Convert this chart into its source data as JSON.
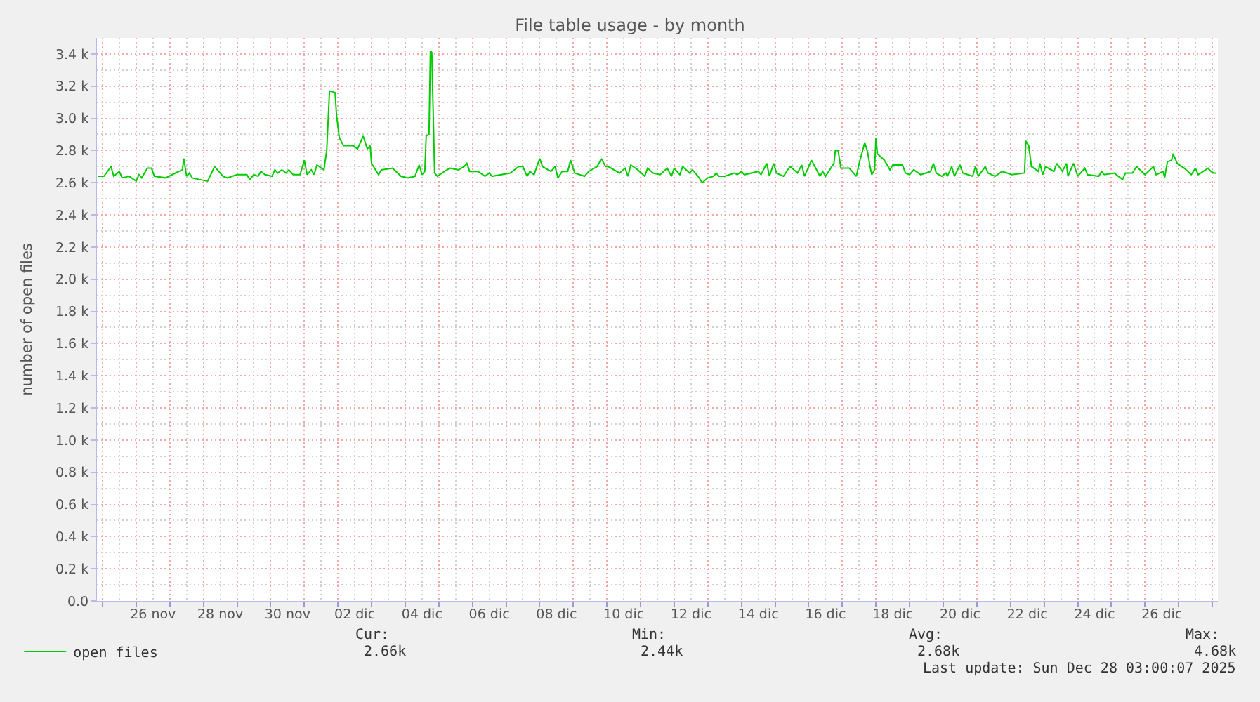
{
  "chart_data": {
    "type": "line",
    "title": "File table usage - by month",
    "ylabel": "number of open files",
    "x": [
      "2025-11-24T21:00",
      "2025-11-25T01:00",
      "2025-11-25T06:00",
      "2025-11-25T08:00",
      "2025-11-25T12:00",
      "2025-11-25T14:00",
      "2025-11-25T19:00",
      "2025-11-26T00:00",
      "2025-11-26T02:00",
      "2025-11-26T04:00",
      "2025-11-26T08:00",
      "2025-11-26T11:00",
      "2025-11-26T13:00",
      "2025-11-26T21:00",
      "2025-11-27T04:00",
      "2025-11-27T09:00",
      "2025-11-27T10:00",
      "2025-11-27T12:00",
      "2025-11-27T14:00",
      "2025-11-27T16:00",
      "2025-11-27T21:00",
      "2025-11-28T03:00",
      "2025-11-28T08:00",
      "2025-11-28T14:00",
      "2025-11-28T17:00",
      "2025-11-29T00:00",
      "2025-11-29T07:00",
      "2025-11-29T09:00",
      "2025-11-29T12:00",
      "2025-11-29T15:00",
      "2025-11-29T17:00",
      "2025-11-29T20:00",
      "2025-11-30T01:00",
      "2025-11-30T03:00",
      "2025-11-30T05:00",
      "2025-11-30T08:00",
      "2025-11-30T11:00",
      "2025-11-30T13:00",
      "2025-11-30T16:00",
      "2025-11-30T21:00",
      "2025-12-01T00:00",
      "2025-12-01T02:00",
      "2025-12-01T05:00",
      "2025-12-01T07:00",
      "2025-12-01T09:00",
      "2025-12-01T14:00",
      "2025-12-01T16:00",
      "2025-12-01T18:00",
      "2025-12-01T22:00",
      "2025-12-01T23:00",
      "2025-12-02T01:00",
      "2025-12-02T04:00",
      "2025-12-02T11:00",
      "2025-12-02T14:00",
      "2025-12-02T18:00",
      "2025-12-02T21:00",
      "2025-12-02T23:00",
      "2025-12-03T00:00",
      "2025-12-03T05:00",
      "2025-12-03T07:00",
      "2025-12-03T15:00",
      "2025-12-03T21:00",
      "2025-12-04T02:00",
      "2025-12-04T07:00",
      "2025-12-04T10:00",
      "2025-12-04T12:00",
      "2025-12-04T14:00",
      "2025-12-04T15:00",
      "2025-12-04T17:00",
      "2025-12-04T18:00",
      "2025-12-04T19:00",
      "2025-12-04T21:00",
      "2025-12-04T23:00",
      "2025-12-05T04:00",
      "2025-12-05T08:00",
      "2025-12-05T14:00",
      "2025-12-05T18:00",
      "2025-12-05T20:00",
      "2025-12-05T22:00",
      "2025-12-06T04:00",
      "2025-12-06T09:00",
      "2025-12-06T12:00",
      "2025-12-06T14:00",
      "2025-12-07T03:00",
      "2025-12-07T09:00",
      "2025-12-07T12:00",
      "2025-12-07T15:00",
      "2025-12-07T17:00",
      "2025-12-07T20:00",
      "2025-12-08T00:00",
      "2025-12-08T02:00",
      "2025-12-08T08:00",
      "2025-12-08T11:00",
      "2025-12-08T13:00",
      "2025-12-08T16:00",
      "2025-12-08T20:00",
      "2025-12-08T22:00",
      "2025-12-09T01:00",
      "2025-12-09T08:00",
      "2025-12-09T11:00",
      "2025-12-09T17:00",
      "2025-12-09T20:00",
      "2025-12-09T23:00",
      "2025-12-10T01:00",
      "2025-12-10T07:00",
      "2025-12-10T09:00",
      "2025-12-10T13:00",
      "2025-12-10T15:00",
      "2025-12-10T17:00",
      "2025-12-10T22:00",
      "2025-12-11T03:00",
      "2025-12-11T05:00",
      "2025-12-11T09:00",
      "2025-12-11T14:00",
      "2025-12-11T19:00",
      "2025-12-11T22:00",
      "2025-12-12T00:00",
      "2025-12-12T04:00",
      "2025-12-12T06:00",
      "2025-12-12T11:00",
      "2025-12-12T13:00",
      "2025-12-12T17:00",
      "2025-12-12T20:00",
      "2025-12-13T00:00",
      "2025-12-13T04:00",
      "2025-12-13T06:00",
      "2025-12-13T08:00",
      "2025-12-13T12:00",
      "2025-12-13T19:00",
      "2025-12-13T21:00",
      "2025-12-14T00:00",
      "2025-12-14T02:00",
      "2025-12-14T12:00",
      "2025-12-14T14:00",
      "2025-12-14T18:00",
      "2025-12-14T20:00",
      "2025-12-14T23:00",
      "2025-12-15T01:00",
      "2025-12-15T06:00",
      "2025-12-15T09:00",
      "2025-12-15T11:00",
      "2025-12-15T16:00",
      "2025-12-15T19:00",
      "2025-12-15T21:00",
      "2025-12-16T02:00",
      "2025-12-16T08:00",
      "2025-12-16T10:00",
      "2025-12-16T12:00",
      "2025-12-16T18:00",
      "2025-12-16T19:00",
      "2025-12-16T21:00",
      "2025-12-16T23:00",
      "2025-12-17T05:00",
      "2025-12-17T10:00",
      "2025-12-17T12:00",
      "2025-12-17T16:00",
      "2025-12-17T18:00",
      "2025-12-17T20:00",
      "2025-12-17T21:00",
      "2025-12-17T23:00",
      "2025-12-18T00:00",
      "2025-12-18T01:00",
      "2025-12-18T06:00",
      "2025-12-18T10:00",
      "2025-12-18T12:00",
      "2025-12-18T19:00",
      "2025-12-18T21:00",
      "2025-12-19T00:00",
      "2025-12-19T03:00",
      "2025-12-19T08:00",
      "2025-12-19T15:00",
      "2025-12-19T17:00",
      "2025-12-19T19:00",
      "2025-12-19T23:00",
      "2025-12-20T02:00",
      "2025-12-20T03:00",
      "2025-12-20T06:00",
      "2025-12-20T08:00",
      "2025-12-20T12:00",
      "2025-12-20T14:00",
      "2025-12-20T21:00",
      "2025-12-20T23:00",
      "2025-12-21T01:00",
      "2025-12-21T06:00",
      "2025-12-21T08:00",
      "2025-12-21T13:00",
      "2025-12-21T18:00",
      "2025-12-22T01:00",
      "2025-12-22T10:00",
      "2025-12-22T11:00",
      "2025-12-22T13:00",
      "2025-12-22T15:00",
      "2025-12-22T20:00",
      "2025-12-22T21:00",
      "2025-12-22T23:00",
      "2025-12-23T01:00",
      "2025-12-23T07:00",
      "2025-12-23T09:00",
      "2025-12-23T13:00",
      "2025-12-23T16:00",
      "2025-12-23T17:00",
      "2025-12-23T21:00",
      "2025-12-24T00:00",
      "2025-12-24T05:00",
      "2025-12-24T07:00",
      "2025-12-24T15:00",
      "2025-12-24T17:00",
      "2025-12-24T19:00",
      "2025-12-25T02:00",
      "2025-12-25T08:00",
      "2025-12-25T10:00",
      "2025-12-25T15:00",
      "2025-12-25T18:00",
      "2025-12-26T00:00",
      "2025-12-26T06:00",
      "2025-12-26T08:00",
      "2025-12-26T13:00",
      "2025-12-26T14:00",
      "2025-12-26T16:00",
      "2025-12-26T19:00",
      "2025-12-26T20:00",
      "2025-12-26T23:00",
      "2025-12-27T04:00",
      "2025-12-27T09:00",
      "2025-12-27T12:00",
      "2025-12-27T14:00",
      "2025-12-27T21:00",
      "2025-12-27T23:00",
      "2025-12-28T01:00",
      "2025-12-28T03:00"
    ],
    "series": [
      {
        "name": "open files",
        "color": "#00cc00",
        "values": [
          2640,
          2640,
          2700,
          2640,
          2670,
          2630,
          2640,
          2610,
          2650,
          2630,
          2690,
          2690,
          2640,
          2630,
          2660,
          2680,
          2750,
          2640,
          2660,
          2630,
          2620,
          2610,
          2700,
          2640,
          2630,
          2650,
          2650,
          2620,
          2650,
          2640,
          2670,
          2650,
          2640,
          2680,
          2660,
          2680,
          2660,
          2680,
          2650,
          2650,
          2740,
          2650,
          2680,
          2650,
          2710,
          2680,
          2800,
          3170,
          3160,
          3020,
          2880,
          2830,
          2830,
          2810,
          2890,
          2810,
          2830,
          2720,
          2650,
          2680,
          2690,
          2640,
          2630,
          2640,
          2710,
          2650,
          2670,
          2890,
          2900,
          3420,
          3410,
          2660,
          2640,
          2670,
          2690,
          2680,
          2700,
          2720,
          2670,
          2670,
          2640,
          2660,
          2640,
          2660,
          2700,
          2700,
          2640,
          2670,
          2650,
          2750,
          2700,
          2670,
          2700,
          2630,
          2670,
          2670,
          2740,
          2660,
          2640,
          2670,
          2700,
          2750,
          2700,
          2700,
          2670,
          2660,
          2690,
          2640,
          2710,
          2680,
          2640,
          2690,
          2660,
          2650,
          2690,
          2640,
          2690,
          2650,
          2700,
          2660,
          2680,
          2640,
          2600,
          2630,
          2640,
          2660,
          2640,
          2640,
          2660,
          2650,
          2670,
          2650,
          2670,
          2650,
          2720,
          2640,
          2720,
          2660,
          2640,
          2680,
          2700,
          2660,
          2710,
          2640,
          2740,
          2640,
          2670,
          2640,
          2720,
          2800,
          2800,
          2690,
          2690,
          2640,
          2720,
          2850,
          2790,
          2690,
          2650,
          2680,
          2880,
          2780,
          2740,
          2680,
          2710,
          2710,
          2660,
          2650,
          2680,
          2650,
          2670,
          2720,
          2660,
          2640,
          2660,
          2640,
          2700,
          2640,
          2710,
          2660,
          2640,
          2700,
          2640,
          2700,
          2660,
          2640,
          2670,
          2650,
          2660,
          2860,
          2830,
          2700,
          2670,
          2720,
          2650,
          2700,
          2670,
          2720,
          2670,
          2720,
          2640,
          2720,
          2640,
          2690,
          2650,
          2640,
          2670,
          2650,
          2660,
          2620,
          2660,
          2660,
          2700,
          2650,
          2700,
          2650,
          2670,
          2630,
          2730,
          2740,
          2780,
          2720,
          2690,
          2650,
          2690,
          2650,
          2690,
          2670,
          2660,
          2660
        ]
      }
    ],
    "xlim": [
      "2025-11-24T20:00",
      "2025-12-28T04:00"
    ],
    "ylim": [
      0,
      3500
    ],
    "xticks": [
      {
        "value": "2025-11-26T12:00",
        "label": "26 nov"
      },
      {
        "value": "2025-11-28T12:00",
        "label": "28 nov"
      },
      {
        "value": "2025-11-30T12:00",
        "label": "30 nov"
      },
      {
        "value": "2025-12-02T12:00",
        "label": "02 dic"
      },
      {
        "value": "2025-12-04T12:00",
        "label": "04 dic"
      },
      {
        "value": "2025-12-06T12:00",
        "label": "06 dic"
      },
      {
        "value": "2025-12-08T12:00",
        "label": "08 dic"
      },
      {
        "value": "2025-12-10T12:00",
        "label": "10 dic"
      },
      {
        "value": "2025-12-12T12:00",
        "label": "12 dic"
      },
      {
        "value": "2025-12-14T12:00",
        "label": "14 dic"
      },
      {
        "value": "2025-12-16T12:00",
        "label": "16 dic"
      },
      {
        "value": "2025-12-18T12:00",
        "label": "18 dic"
      },
      {
        "value": "2025-12-20T12:00",
        "label": "20 dic"
      },
      {
        "value": "2025-12-22T12:00",
        "label": "22 dic"
      },
      {
        "value": "2025-12-24T12:00",
        "label": "24 dic"
      },
      {
        "value": "2025-12-26T12:00",
        "label": "26 dic"
      }
    ],
    "yticks": [
      {
        "value": 0,
        "label": "0.0"
      },
      {
        "value": 200,
        "label": "0.2 k"
      },
      {
        "value": 400,
        "label": "0.4 k"
      },
      {
        "value": 600,
        "label": "0.6 k"
      },
      {
        "value": 800,
        "label": "0.8 k"
      },
      {
        "value": 1000,
        "label": "1.0 k"
      },
      {
        "value": 1200,
        "label": "1.2 k"
      },
      {
        "value": 1400,
        "label": "1.4 k"
      },
      {
        "value": 1600,
        "label": "1.6 k"
      },
      {
        "value": 1800,
        "label": "1.8 k"
      },
      {
        "value": 2000,
        "label": "2.0 k"
      },
      {
        "value": 2200,
        "label": "2.2 k"
      },
      {
        "value": 2400,
        "label": "2.4 k"
      },
      {
        "value": 2600,
        "label": "2.6 k"
      },
      {
        "value": 2800,
        "label": "2.8 k"
      },
      {
        "value": 3000,
        "label": "3.0 k"
      },
      {
        "value": 3200,
        "label": "3.2 k"
      },
      {
        "value": 3400,
        "label": "3.4 k"
      }
    ],
    "grid": true,
    "legend": "bottom left",
    "line_style": "solid",
    "annotations": [
      "Cur:",
      "2.66k",
      "Min:",
      "2.44k",
      "Avg:",
      "2.68k",
      "Max:",
      "4.68k",
      "Last update: Sun Dec 28 03:00:07 2025"
    ]
  }
}
